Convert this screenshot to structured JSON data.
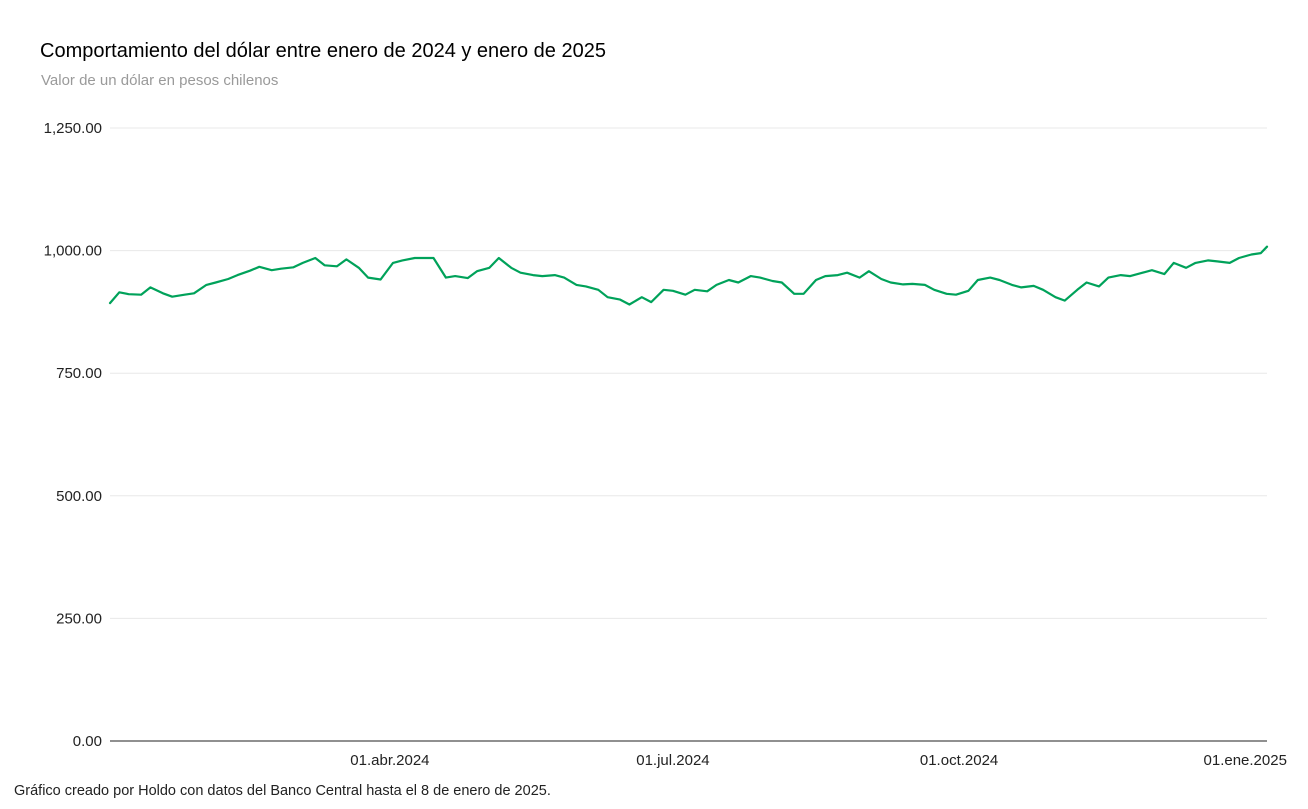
{
  "title": "Comportamiento del dólar entre enero de 2024 y enero de 2025",
  "subtitle": "Valor de un dólar en pesos chilenos",
  "footnote": "Gráfico creado por Holdo con datos del Banco Central hasta el 8 de enero de 2025.",
  "colors": {
    "line": "#00a25a",
    "grid": "#e8e8e8",
    "axis": "#222222"
  },
  "chart_data": {
    "type": "line",
    "title": "Comportamiento del dólar entre enero de 2024 y enero de 2025",
    "subtitle": "Valor de un dólar en pesos chilenos",
    "xlabel": "",
    "ylabel": "",
    "ylim": [
      0,
      1250
    ],
    "y_ticks": [
      0,
      250,
      500,
      750,
      1000,
      1250
    ],
    "y_tick_labels": [
      "0.00",
      "250.00",
      "500.00",
      "750.00",
      "1,000.00",
      "1,250.00"
    ],
    "xlim": [
      "2024-01-02",
      "2025-01-08"
    ],
    "x_ticks": [
      "2024-04-01",
      "2024-07-01",
      "2024-10-01",
      "2025-01-01"
    ],
    "x_tick_labels": [
      "01.abr.2024",
      "01.jul.2024",
      "01.oct.2024",
      "01.ene.2025"
    ],
    "grid": true,
    "series": [
      {
        "x": [
          "2024-01-02",
          "2024-01-05",
          "2024-01-08",
          "2024-01-12",
          "2024-01-15",
          "2024-01-19",
          "2024-01-22",
          "2024-01-26",
          "2024-01-29",
          "2024-02-02",
          "2024-02-05",
          "2024-02-09",
          "2024-02-12",
          "2024-02-16",
          "2024-02-19",
          "2024-02-23",
          "2024-02-26",
          "2024-03-01",
          "2024-03-04",
          "2024-03-08",
          "2024-03-11",
          "2024-03-15",
          "2024-03-18",
          "2024-03-22",
          "2024-03-25",
          "2024-03-29",
          "2024-04-02",
          "2024-04-05",
          "2024-04-09",
          "2024-04-12",
          "2024-04-15",
          "2024-04-19",
          "2024-04-22",
          "2024-04-26",
          "2024-04-29",
          "2024-05-03",
          "2024-05-06",
          "2024-05-10",
          "2024-05-13",
          "2024-05-17",
          "2024-05-20",
          "2024-05-24",
          "2024-05-27",
          "2024-05-31",
          "2024-06-03",
          "2024-06-07",
          "2024-06-10",
          "2024-06-14",
          "2024-06-17",
          "2024-06-21",
          "2024-06-24",
          "2024-06-28",
          "2024-07-01",
          "2024-07-05",
          "2024-07-08",
          "2024-07-12",
          "2024-07-15",
          "2024-07-19",
          "2024-07-22",
          "2024-07-26",
          "2024-07-29",
          "2024-08-02",
          "2024-08-05",
          "2024-08-09",
          "2024-08-12",
          "2024-08-16",
          "2024-08-19",
          "2024-08-23",
          "2024-08-26",
          "2024-08-30",
          "2024-09-02",
          "2024-09-06",
          "2024-09-09",
          "2024-09-13",
          "2024-09-16",
          "2024-09-20",
          "2024-09-23",
          "2024-09-27",
          "2024-09-30",
          "2024-10-04",
          "2024-10-07",
          "2024-10-11",
          "2024-10-14",
          "2024-10-18",
          "2024-10-21",
          "2024-10-25",
          "2024-10-28",
          "2024-11-01",
          "2024-11-04",
          "2024-11-08",
          "2024-11-11",
          "2024-11-15",
          "2024-11-18",
          "2024-11-22",
          "2024-11-25",
          "2024-11-29",
          "2024-12-02",
          "2024-12-06",
          "2024-12-09",
          "2024-12-13",
          "2024-12-16",
          "2024-12-20",
          "2024-12-23",
          "2024-12-27",
          "2024-12-30",
          "2025-01-03",
          "2025-01-06",
          "2025-01-08"
        ],
        "y": [
          893,
          915,
          911,
          910,
          925,
          913,
          906,
          910,
          913,
          930,
          935,
          942,
          950,
          959,
          967,
          960,
          963,
          966,
          975,
          985,
          970,
          968,
          982,
          965,
          945,
          941,
          975,
          980,
          985,
          985,
          985,
          945,
          948,
          944,
          958,
          965,
          985,
          965,
          955,
          950,
          948,
          950,
          945,
          930,
          927,
          920,
          905,
          900,
          890,
          905,
          895,
          920,
          918,
          910,
          920,
          917,
          930,
          940,
          935,
          948,
          945,
          938,
          935,
          912,
          912,
          940,
          948,
          950,
          955,
          945,
          958,
          942,
          935,
          931,
          932,
          930,
          920,
          912,
          910,
          918,
          940,
          945,
          940,
          930,
          925,
          928,
          920,
          905,
          898,
          920,
          935,
          927,
          945,
          950,
          948,
          955,
          960,
          952,
          975,
          965,
          975,
          980,
          978,
          975,
          985,
          992,
          995,
          1008
        ]
      }
    ]
  }
}
